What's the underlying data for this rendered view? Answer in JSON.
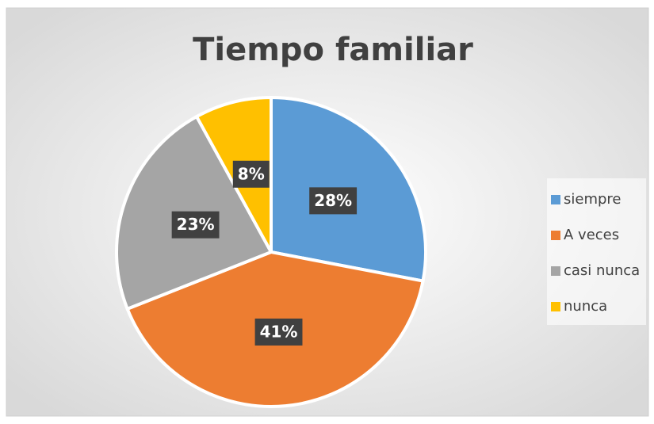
{
  "chart_data": {
    "type": "pie",
    "title": "Tiempo familiar",
    "categories": [
      "siempre",
      "A veces",
      "casi nunca",
      "nunca"
    ],
    "values": [
      28,
      41,
      23,
      8
    ],
    "value_labels": [
      "28%",
      "41%",
      "23%",
      "8%"
    ],
    "colors": [
      "#5b9bd5",
      "#ed7d31",
      "#a5a5a5",
      "#ffc000"
    ],
    "legend": "right"
  }
}
